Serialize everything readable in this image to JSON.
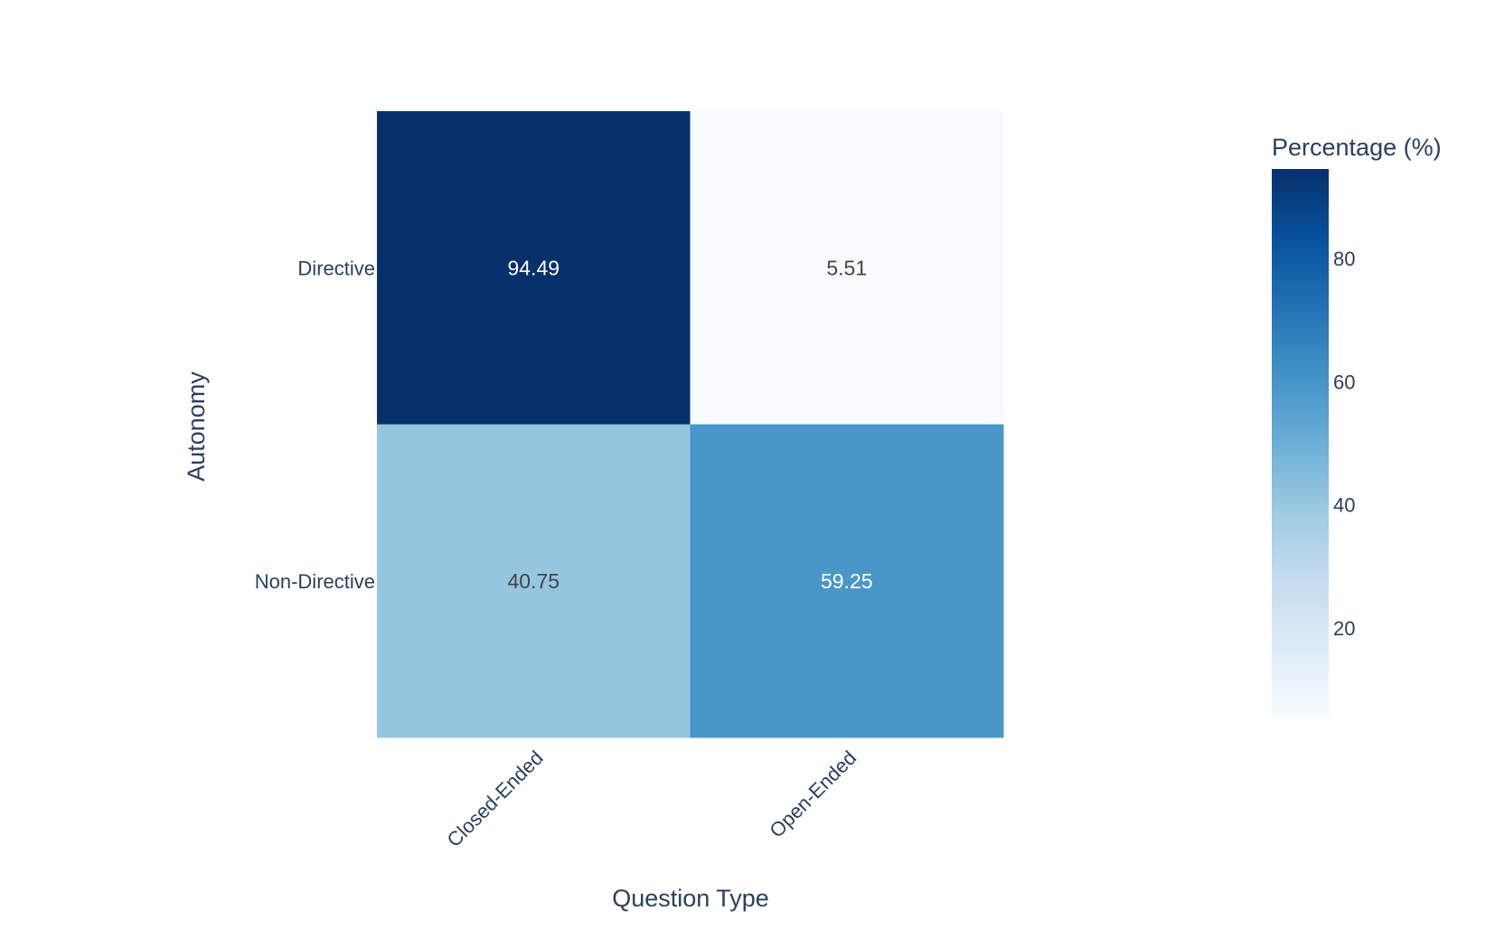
{
  "chart_data": {
    "type": "heatmap",
    "x_categories": [
      "Closed-Ended",
      "Open-Ended"
    ],
    "y_categories": [
      "Directive",
      "Non-Directive"
    ],
    "z": [
      [
        94.49,
        5.51
      ],
      [
        40.75,
        59.25
      ]
    ],
    "z_labels": [
      [
        "94.49",
        "5.51"
      ],
      [
        "40.75",
        "59.25"
      ]
    ],
    "xlabel": "Question Type",
    "ylabel": "Autonomy",
    "colorscale": "Blues",
    "zrange": [
      5.51,
      94.49
    ],
    "colorbar": {
      "title": "Percentage (%)",
      "ticks": [
        20,
        40,
        60,
        80
      ],
      "tick_labels": [
        "20",
        "40",
        "60",
        "80"
      ]
    }
  }
}
